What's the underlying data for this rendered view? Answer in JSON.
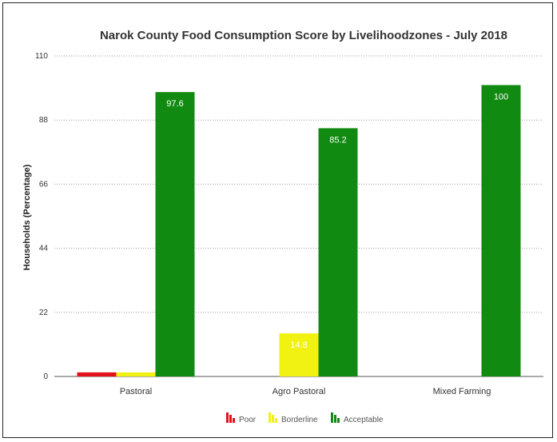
{
  "chart_data": {
    "type": "bar",
    "title": "Narok County Food Consumption Score by Livelihoodzones - July 2018",
    "xlabel": "",
    "ylabel": "Households (Percentage)",
    "ylim": [
      0,
      110
    ],
    "yticks": [
      "0",
      "22",
      "44",
      "66",
      "88",
      "110"
    ],
    "categories": [
      "Pastoral",
      "Agro Pastoral",
      "Mixed Farming"
    ],
    "series": [
      {
        "name": "Poor",
        "color": "#e3111b",
        "values": [
          1.4,
          0,
          0
        ],
        "labels": [
          "",
          "",
          ""
        ]
      },
      {
        "name": "Borderline",
        "color": "#f2f212",
        "values": [
          1.4,
          14.8,
          0
        ],
        "labels": [
          "",
          "14.8",
          ""
        ]
      },
      {
        "name": "Acceptable",
        "color": "#118a11",
        "values": [
          97.6,
          85.2,
          100
        ],
        "labels": [
          "97.6",
          "85.2",
          "100"
        ]
      }
    ],
    "grid": true,
    "legend_position": "bottom"
  }
}
